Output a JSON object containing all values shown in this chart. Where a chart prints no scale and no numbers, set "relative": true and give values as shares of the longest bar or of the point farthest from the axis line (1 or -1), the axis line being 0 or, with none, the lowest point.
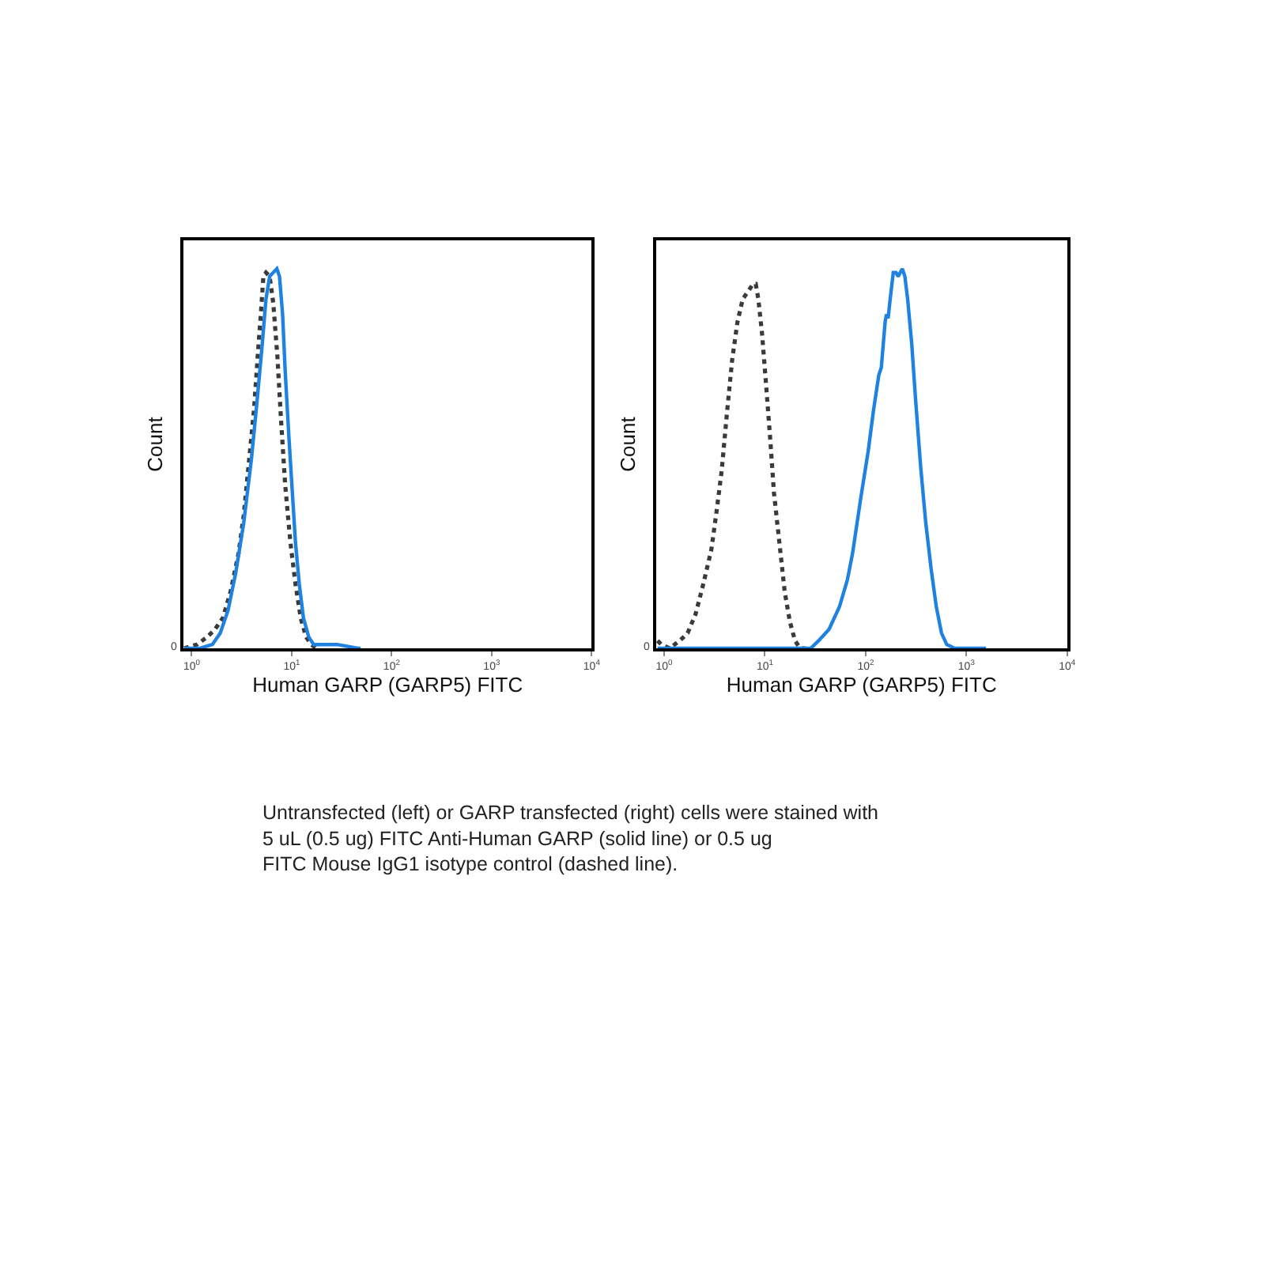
{
  "chart_data": [
    {
      "type": "line",
      "relative": true,
      "xlabel": "Human GARP (GARP5) FITC",
      "ylabel": "Count",
      "log": "x",
      "xlim": [
        0.83,
        10000
      ],
      "xticks": [
        {
          "value": 1,
          "label": "10$^{0}$"
        },
        {
          "value": 10,
          "label": "10$^{1}$"
        },
        {
          "value": 100,
          "label": "10$^{2}$"
        },
        {
          "value": 1000,
          "label": "10$^{3}$"
        },
        {
          "value": 10000,
          "label": "10$^{4}$"
        }
      ],
      "marker": "none",
      "series": [
        {
          "color": "#3a3a3a",
          "line_style": "dotted",
          "x": [
            0.84,
            1.13,
            1.43,
            1.71,
            2.05,
            2.45,
            2.94,
            3.31,
            3.73,
            4.2,
            4.57,
            4.91,
            5.21,
            5.53,
            6.02,
            6.54,
            7.19,
            7.83,
            8.61,
            9.7,
            10.9,
            12.3,
            13.9,
            15.7,
            17.7
          ],
          "values": [
            0.0,
            0.01,
            0.03,
            0.05,
            0.08,
            0.15,
            0.25,
            0.35,
            0.49,
            0.63,
            0.77,
            0.88,
            0.98,
            0.99,
            0.98,
            0.91,
            0.77,
            0.6,
            0.43,
            0.28,
            0.17,
            0.08,
            0.03,
            0.01,
            0.0
          ]
        },
        {
          "color": "#1f82e0",
          "line_style": "solid",
          "x": [
            0.84,
            1.2,
            1.61,
            1.93,
            2.31,
            2.76,
            3.31,
            3.96,
            4.46,
            5.03,
            5.53,
            6.02,
            6.54,
            7.11,
            7.55,
            8.11,
            8.61,
            9.36,
            10.1,
            10.9,
            11.9,
            13.1,
            14.8,
            16.6,
            21.1,
            28.5,
            45.9,
            48.8
          ],
          "values": [
            0.0,
            0.0,
            0.01,
            0.04,
            0.1,
            0.2,
            0.33,
            0.5,
            0.64,
            0.79,
            0.92,
            0.98,
            0.99,
            1.0,
            0.98,
            0.88,
            0.73,
            0.56,
            0.42,
            0.28,
            0.17,
            0.08,
            0.03,
            0.01,
            0.01,
            0.01,
            0.0,
            0.0
          ]
        }
      ],
      "annotations": [
        "0",
        "Untransfected (left) or GARP transfected (right) cells were stained with\n5 uL (0.5 ug) FITC Anti-Human GARP (solid line) or 0.5 ug\nFITC Mouse IgG1 isotype control (dashed line)."
      ]
    },
    {
      "type": "line",
      "relative": true,
      "xlabel": "Human GARP (GARP5) FITC",
      "ylabel": "Count",
      "log": "x",
      "xlim": [
        0.83,
        10000
      ],
      "xticks": [
        {
          "value": 1,
          "label": "10$^{0}$"
        },
        {
          "value": 10,
          "label": "10$^{1}$"
        },
        {
          "value": 100,
          "label": "10$^{2}$"
        },
        {
          "value": 1000,
          "label": "10$^{3}$"
        },
        {
          "value": 10000,
          "label": "10$^{4}$"
        }
      ],
      "marker": "none",
      "series": [
        {
          "color": "#3a3a3a",
          "line_style": "dotted",
          "x": [
            0.86,
            0.94,
            1.13,
            1.43,
            1.71,
            2.05,
            2.45,
            2.94,
            3.31,
            3.73,
            4.2,
            4.73,
            5.34,
            6.02,
            6.78,
            7.64,
            8.11,
            8.61,
            9.36,
            10.3,
            11.3,
            12.3,
            13.9,
            15.7,
            17.7,
            19.9,
            22.4,
            25.3
          ],
          "values": [
            0.02,
            0.01,
            0.0,
            0.02,
            0.04,
            0.09,
            0.17,
            0.26,
            0.36,
            0.47,
            0.62,
            0.76,
            0.86,
            0.92,
            0.94,
            0.96,
            0.96,
            0.92,
            0.83,
            0.69,
            0.55,
            0.41,
            0.28,
            0.15,
            0.07,
            0.02,
            0.0,
            0.0
          ]
        },
        {
          "color": "#1f82e0",
          "line_style": "solid",
          "x": [
            0.86,
            23.8,
            28.5,
            34.1,
            43.3,
            55,
            65.8,
            74.1,
            88.7,
            106,
            120,
            135,
            143,
            156,
            161,
            167,
            175,
            188,
            200,
            210,
            220,
            231,
            245,
            261,
            287,
            312,
            351,
            395,
            446,
            502,
            566,
            638,
            764,
            1566
          ],
          "values": [
            0.0,
            0.0,
            0.0,
            0.02,
            0.05,
            0.11,
            0.18,
            0.25,
            0.39,
            0.52,
            0.63,
            0.72,
            0.74,
            0.86,
            0.88,
            0.87,
            0.92,
            0.99,
            0.99,
            0.98,
            0.99,
            1.0,
            0.98,
            0.92,
            0.8,
            0.66,
            0.48,
            0.33,
            0.21,
            0.11,
            0.04,
            0.01,
            0.0,
            0.0
          ]
        }
      ],
      "annotations": [
        "0"
      ]
    }
  ]
}
